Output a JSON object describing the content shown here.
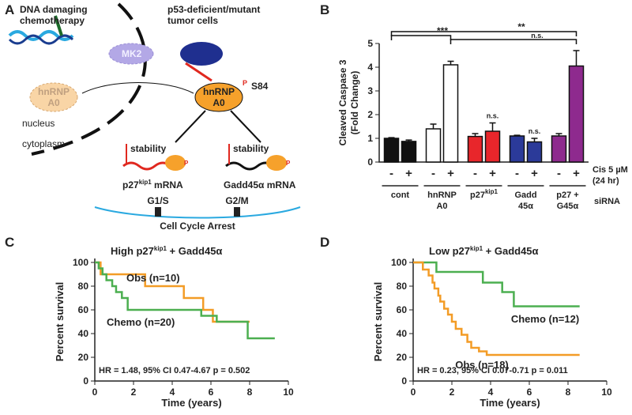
{
  "panel_labels": [
    "A",
    "B",
    "C",
    "D"
  ],
  "diagram": {
    "chemo": [
      "DNA damaging",
      "chemotherapy"
    ],
    "tumor": [
      "p53-deficient/mutant",
      "tumor cells"
    ],
    "mk2": "MK2",
    "hnrnp_faded": [
      "hnRNP",
      "A0"
    ],
    "hnrnp": [
      "hnRNP",
      "A0"
    ],
    "phospho": "P",
    "site": "S84",
    "nucleus": "nucleus",
    "cytoplasm": "cytoplasm",
    "stability": "stability",
    "p27_mrna": [
      "p27",
      "kip1",
      " mRNA"
    ],
    "gadd_mrna": "Gadd45α mRNA",
    "g1s": "G1/S",
    "g2m": "G2/M",
    "arrest": "Cell Cycle Arrest"
  },
  "chart_data": [
    {
      "type": "bar",
      "ylabel": [
        "Cleaved Caspase 3",
        "(Fold Change)"
      ],
      "ylim": [
        0,
        5
      ],
      "yticks": [
        0,
        1,
        2,
        3,
        4,
        5
      ],
      "categories": [
        [
          "cont"
        ],
        [
          "hnRNP",
          "A0"
        ],
        [
          [
            "p27",
            "kip1"
          ]
        ],
        [
          "Gadd",
          "45α"
        ],
        [
          "p27 +",
          "G45α"
        ]
      ],
      "colors": [
        "#111111",
        "#ffffff",
        "#e8262b",
        "#2b3a99",
        "#8e2a8e"
      ],
      "series": [
        {
          "treatment": "-",
          "values": [
            1.0,
            1.4,
            1.08,
            1.1,
            1.1
          ],
          "errors": [
            0.03,
            0.2,
            0.12,
            0.03,
            0.1
          ]
        },
        {
          "treatment": "+",
          "values": [
            0.87,
            4.1,
            1.3,
            0.85,
            4.05
          ],
          "errors": [
            0.06,
            0.15,
            0.35,
            0.15,
            0.65
          ]
        }
      ],
      "treatment_label": [
        "Cis 5 µM",
        "(24 hr)"
      ],
      "group_label": "siRNA",
      "annotations": [
        "***",
        "**",
        "n.s.",
        "n.s.",
        "n.s."
      ]
    },
    {
      "type": "survival",
      "title": [
        "High p27",
        "kip1",
        " + Gadd45α"
      ],
      "xlabel": "Time (years)",
      "ylabel": "Percent survival",
      "xlim": [
        0,
        10
      ],
      "xticks": [
        0,
        2,
        4,
        6,
        8,
        10
      ],
      "ylim": [
        0,
        100
      ],
      "yticks": [
        0,
        20,
        40,
        60,
        80,
        100
      ],
      "series": [
        {
          "name": "Obs (n=10)",
          "color": "#f39c26",
          "x": [
            0,
            0.3,
            2.6,
            4.6,
            5.6,
            6.1,
            8.0
          ],
          "values": [
            100,
            90,
            80,
            70,
            60,
            50,
            50
          ]
        },
        {
          "name": "Chemo (n=20)",
          "color": "#4caf50",
          "x": [
            0,
            0.2,
            0.4,
            0.6,
            0.9,
            1.1,
            1.4,
            1.7,
            5.5,
            6.3,
            7.9,
            9.3
          ],
          "values": [
            100,
            95,
            90,
            85,
            80,
            75,
            70,
            60,
            55,
            50,
            36,
            36
          ]
        }
      ],
      "annotation": "HR = 1.48, 95% CI 0.47-4.67 p = 0.502"
    },
    {
      "type": "survival",
      "title": [
        "Low p27",
        "kip1",
        " + Gadd45α"
      ],
      "xlabel": "Time (years)",
      "ylabel": "Percent survival",
      "xlim": [
        0,
        10
      ],
      "xticks": [
        0,
        2,
        4,
        6,
        8,
        10
      ],
      "ylim": [
        0,
        100
      ],
      "yticks": [
        0,
        20,
        40,
        60,
        80,
        100
      ],
      "series": [
        {
          "name": "Chemo (n=12)",
          "color": "#4caf50",
          "x": [
            0,
            1.2,
            3.6,
            4.6,
            5.2,
            8.6
          ],
          "values": [
            100,
            92,
            83,
            75,
            63,
            63
          ]
        },
        {
          "name": "Obs (n=18)",
          "color": "#f39c26",
          "x": [
            0,
            0.5,
            0.8,
            1.0,
            1.1,
            1.3,
            1.4,
            1.6,
            1.8,
            2.0,
            2.2,
            2.5,
            2.8,
            3.0,
            3.4,
            3.8,
            8.6
          ],
          "values": [
            100,
            94,
            89,
            83,
            78,
            72,
            67,
            61,
            56,
            50,
            44,
            39,
            33,
            28,
            25,
            22,
            22
          ]
        }
      ],
      "annotation": "HR = 0.23, 95% CI 0.07-0.71 p = 0.011"
    }
  ]
}
